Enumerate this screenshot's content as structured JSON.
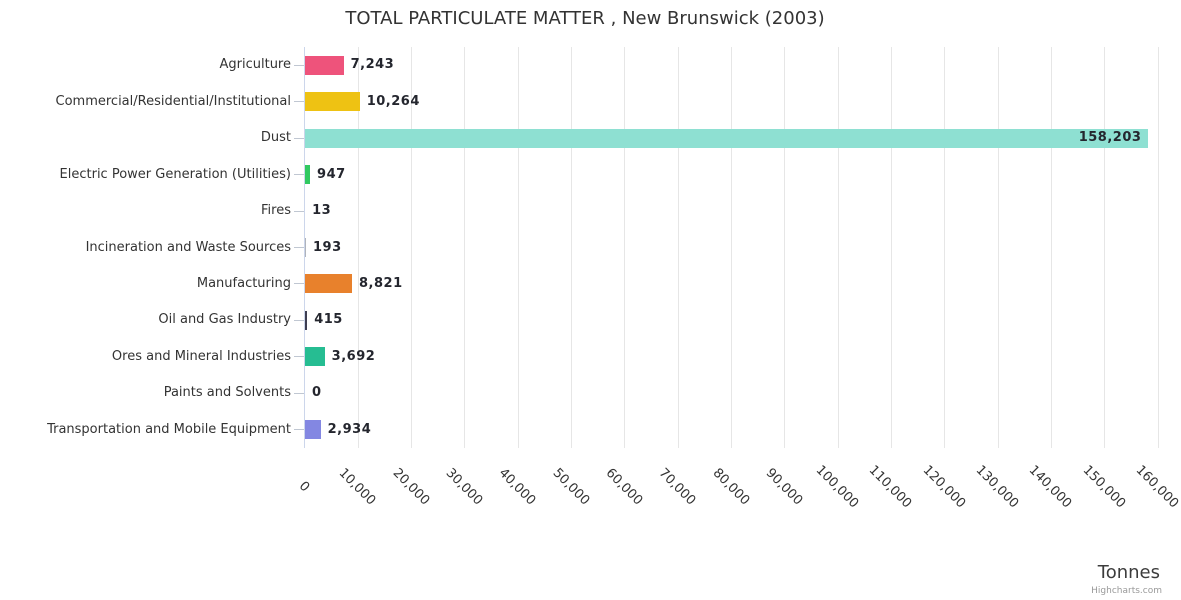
{
  "title": "TOTAL PARTICULATE MATTER , New Brunswick (2003)",
  "axis": {
    "x_title": "Tonnes",
    "tick_labels": [
      "0",
      "10,000",
      "20,000",
      "30,000",
      "40,000",
      "50,000",
      "60,000",
      "70,000",
      "80,000",
      "90,000",
      "100,000",
      "110,000",
      "120,000",
      "130,000",
      "140,000",
      "150,000",
      "160,000"
    ]
  },
  "credit": "Highcharts.com",
  "colors": {
    "axis_line": "#CCD6EB",
    "gridline": "#E6E6E6",
    "tick": "#C0C7D2",
    "title_text": "#333333",
    "category_text": "#333333",
    "value_text": "#24262E",
    "axis_title_text": "#3C3C3C",
    "credit_text": "#999999"
  },
  "chart_data": {
    "type": "bar",
    "orientation": "horizontal",
    "title": "TOTAL PARTICULATE MATTER , New Brunswick (2003)",
    "categories": [
      "Agriculture",
      "Commercial/Residential/Institutional",
      "Dust",
      "Electric Power Generation (Utilities)",
      "Fires",
      "Incineration and Waste Sources",
      "Manufacturing",
      "Oil and Gas Industry",
      "Ores and Mineral Industries",
      "Paints and Solvents",
      "Transportation and Mobile Equipment"
    ],
    "values": [
      7243,
      10264,
      158203,
      947,
      13,
      193,
      8821,
      415,
      3692,
      0,
      2934
    ],
    "value_labels": [
      "7,243",
      "10,264",
      "158,203",
      "947",
      "13",
      "193",
      "8,821",
      "415",
      "3,692",
      "0",
      "2,934"
    ],
    "bar_colors": [
      "#EE537B",
      "#EEC213",
      "#8EE0D2",
      "#31C961",
      "#B0B4BC",
      "#B0B4BC",
      "#E8812C",
      "#3E3E52",
      "#26BD92",
      "#B0B4BC",
      "#8387E2"
    ],
    "xlabel": "Tonnes",
    "xlim": [
      0,
      160000
    ],
    "x_step": 10000,
    "grid": true,
    "legend": false
  }
}
